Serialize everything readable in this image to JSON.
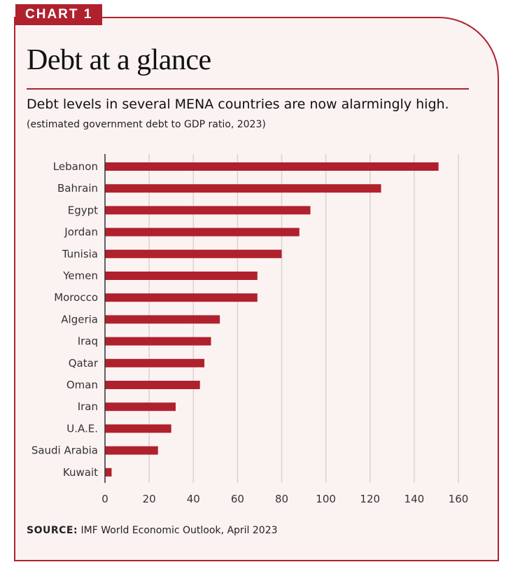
{
  "badge": "CHART 1",
  "title": "Debt at a glance",
  "subtitle": "Debt levels in several MENA countries are now alarmingly high.",
  "note": "(estimated government debt to GDP ratio, 2023)",
  "source": {
    "label": "SOURCE:",
    "text": "IMF World Economic Outlook, April 2023"
  },
  "colors": {
    "accent": "#b0212e",
    "background": "#fbf3f2",
    "grid": "#d9d3d1"
  },
  "chart_data": {
    "type": "bar",
    "orientation": "horizontal",
    "categories": [
      "Lebanon",
      "Bahrain",
      "Egypt",
      "Jordan",
      "Tunisia",
      "Yemen",
      "Morocco",
      "Algeria",
      "Iraq",
      "Qatar",
      "Oman",
      "Iran",
      "U.A.E.",
      "Saudi Arabia",
      "Kuwait"
    ],
    "values": [
      151,
      125,
      93,
      88,
      80,
      69,
      69,
      52,
      48,
      45,
      43,
      32,
      30,
      24,
      3
    ],
    "xlim": [
      0,
      160
    ],
    "xticks": [
      0,
      20,
      40,
      60,
      80,
      100,
      120,
      140,
      160
    ],
    "title": "Debt at a glance",
    "xlabel": "",
    "ylabel": "",
    "grid": true
  }
}
